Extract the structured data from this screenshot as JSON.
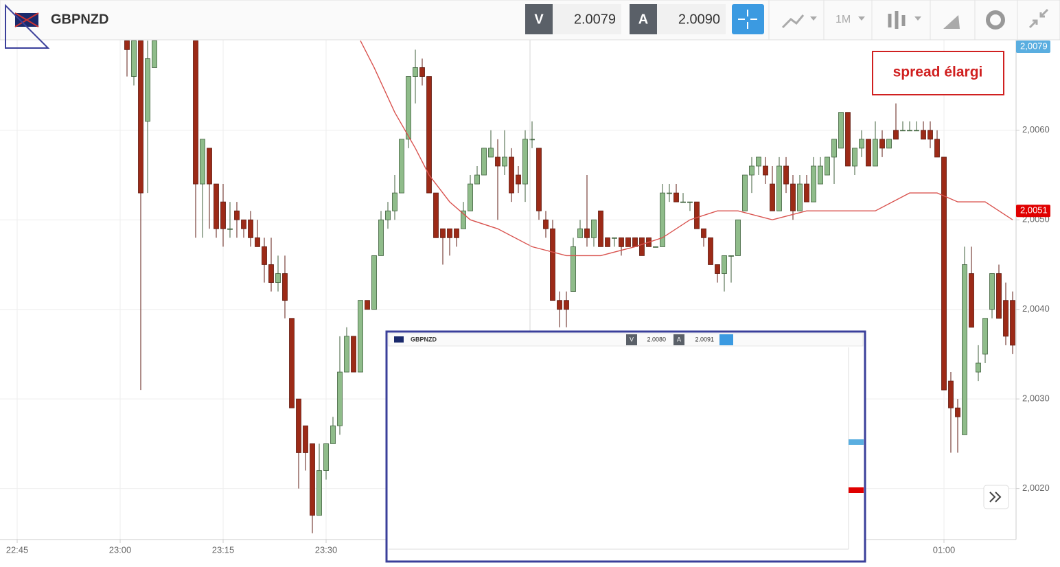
{
  "header": {
    "symbol": "GBPNZD",
    "bid_label": "V",
    "bid": "2.0079",
    "ask_label": "A",
    "ask": "2.0090",
    "timeframe": "1M"
  },
  "annotation": "spread élargi",
  "inset": {
    "symbol": "GBPNZD",
    "bid_label": "V",
    "bid": "2.0080",
    "ask_label": "A",
    "ask": "2.0091"
  },
  "chart_data": {
    "type": "candlestick",
    "up_color": "#8fbc8a",
    "down_color": "#9c2a17",
    "grid": true,
    "ylim": [
      2.00143,
      2.00701
    ],
    "yticks": [
      {
        "value": 2.002,
        "label": "2,0020"
      },
      {
        "value": 2.003,
        "label": "2,0030"
      },
      {
        "value": 2.004,
        "label": "2,0040"
      },
      {
        "value": 2.005,
        "label": "2,0050"
      },
      {
        "value": 2.006,
        "label": "2,0060"
      }
    ],
    "xlim": [
      "22:42:30",
      "01:10:30"
    ],
    "xticks": [
      "22:45",
      "23:00",
      "23:15",
      "23:30",
      "01:00"
    ],
    "x": [
      "23:01",
      "23:02",
      "23:03",
      "23:04",
      "23:05",
      "23:11",
      "23:12",
      "23:13",
      "23:14",
      "23:15",
      "23:16",
      "23:17",
      "23:18",
      "23:19",
      "23:20",
      "23:21",
      "23:22",
      "23:23",
      "23:24",
      "23:25",
      "23:26",
      "23:27",
      "23:28",
      "23:29",
      "23:30",
      "23:31",
      "23:32",
      "23:33",
      "23:34",
      "23:35",
      "23:36",
      "23:37",
      "23:38",
      "23:39",
      "23:40",
      "23:41",
      "23:42",
      "23:43",
      "23:44",
      "23:45",
      "23:46",
      "23:47",
      "23:48",
      "23:49",
      "23:50",
      "23:51",
      "23:52",
      "23:53",
      "23:54",
      "23:55",
      "23:56",
      "23:57",
      "23:58",
      "23:59",
      "00:00",
      "00:01",
      "00:02",
      "00:03",
      "00:04",
      "00:05",
      "00:06",
      "00:07",
      "00:08",
      "00:09",
      "00:10",
      "00:11",
      "00:12",
      "00:13",
      "00:14",
      "00:15",
      "00:16",
      "00:17",
      "00:18",
      "00:19",
      "00:20",
      "00:21",
      "00:22",
      "00:23",
      "00:24",
      "00:25",
      "00:26",
      "00:27",
      "00:28",
      "00:29",
      "00:30",
      "00:31",
      "00:32",
      "00:33",
      "00:34",
      "00:35",
      "00:36",
      "00:37",
      "00:38",
      "00:39",
      "00:40",
      "00:41",
      "00:42",
      "00:43",
      "00:44",
      "00:45",
      "00:46",
      "00:47",
      "00:48",
      "00:49",
      "00:50",
      "00:51",
      "00:52",
      "00:53",
      "00:54",
      "00:55",
      "00:56",
      "00:57",
      "00:58",
      "00:59",
      "01:00",
      "01:01",
      "01:02",
      "01:03",
      "01:04",
      "01:05",
      "01:06",
      "01:07",
      "01:08",
      "01:09",
      "01:10"
    ],
    "open": [
      2.007,
      2.0066,
      2.007,
      2.0061,
      2.0067,
      2.007,
      2.0054,
      2.0058,
      2.0054,
      2.0052,
      2.0049,
      2.0051,
      2.005,
      2.005,
      2.0048,
      2.0047,
      2.0045,
      2.0043,
      2.0044,
      2.0039,
      2.003,
      2.0027,
      2.0025,
      2.0017,
      2.0022,
      2.0025,
      2.0027,
      2.0033,
      2.0037,
      2.0033,
      2.0041,
      2.004,
      2.0046,
      2.005,
      2.0051,
      2.0053,
      2.0059,
      2.0066,
      2.0067,
      2.0066,
      2.0053,
      2.0049,
      2.0049,
      2.0049,
      2.0049,
      2.0051,
      2.0054,
      2.0055,
      2.0057,
      2.0057,
      2.0056,
      2.0057,
      2.0055,
      2.0054,
      2.0059,
      2.0058,
      2.005,
      2.0049,
      2.0041,
      2.0041,
      2.0042,
      2.0048,
      2.0049,
      2.0048,
      2.0051,
      2.0048,
      2.0048,
      2.0048,
      2.0048,
      2.0048,
      2.0048,
      2.0048,
      2.0047,
      2.0047,
      2.0053,
      2.0053,
      2.0052,
      2.0052,
      2.0052,
      2.0049,
      2.0048,
      2.0045,
      2.0044,
      2.0046,
      2.0046,
      2.0051,
      2.0055,
      2.0056,
      2.0056,
      2.0054,
      2.0051,
      2.0056,
      2.0054,
      2.0051,
      2.0054,
      2.0052,
      2.0054,
      2.0055,
      2.0057,
      2.0058,
      2.0062,
      2.0056,
      2.0058,
      2.0059,
      2.0056,
      2.0059,
      2.0058,
      2.006,
      2.006,
      2.006,
      2.006,
      2.006,
      2.006,
      2.0059,
      2.0057,
      2.0032,
      2.0029,
      2.0026,
      2.0044,
      2.0033,
      2.0035,
      2.004,
      2.0044,
      2.0041,
      2.0041
    ],
    "high": [
      2.007,
      2.007,
      2.007,
      2.007,
      2.007,
      2.007,
      2.0059,
      2.0058,
      2.0054,
      2.0054,
      2.0052,
      2.0052,
      2.005,
      2.0051,
      2.005,
      2.0048,
      2.0048,
      2.0046,
      2.0046,
      2.0039,
      2.003,
      2.0027,
      2.0025,
      2.0025,
      2.0025,
      2.0028,
      2.0037,
      2.0038,
      2.0037,
      2.0041,
      2.0041,
      2.0046,
      2.0051,
      2.0052,
      2.0055,
      2.0059,
      2.0066,
      2.0069,
      2.0068,
      2.0066,
      2.0053,
      2.0049,
      2.0049,
      2.0049,
      2.0052,
      2.0055,
      2.0056,
      2.0058,
      2.006,
      2.0059,
      2.006,
      2.0058,
      2.0056,
      2.006,
      2.0061,
      2.0058,
      2.0051,
      2.005,
      2.0042,
      2.0042,
      2.0048,
      2.005,
      2.0055,
      2.005,
      2.0051,
      2.0048,
      2.0048,
      2.0048,
      2.0048,
      2.0048,
      2.0048,
      2.0048,
      2.0047,
      2.0054,
      2.0054,
      2.0054,
      2.0053,
      2.0052,
      2.0052,
      2.0049,
      2.0048,
      2.0045,
      2.0046,
      2.0046,
      2.005,
      2.0055,
      2.0057,
      2.0057,
      2.0057,
      2.0056,
      2.0057,
      2.0057,
      2.0055,
      2.0055,
      2.0055,
      2.0057,
      2.0057,
      2.0057,
      2.0059,
      2.0062,
      2.0062,
      2.0058,
      2.006,
      2.0059,
      2.0061,
      2.006,
      2.0059,
      2.0063,
      2.0061,
      2.0061,
      2.0061,
      2.0061,
      2.0061,
      2.006,
      2.0057,
      2.0033,
      2.003,
      2.0047,
      2.0047,
      2.0036,
      2.0039,
      2.0044,
      2.0045,
      2.0043,
      2.0042
    ],
    "low": [
      2.0066,
      2.0065,
      2.0031,
      2.0053,
      2.0067,
      2.0048,
      2.0048,
      2.0049,
      2.0048,
      2.0047,
      2.0048,
      2.0048,
      2.0048,
      2.0047,
      2.0047,
      2.0043,
      2.0042,
      2.0042,
      2.0039,
      2.0029,
      2.002,
      2.0022,
      2.0015,
      2.0017,
      2.0021,
      2.0025,
      2.0026,
      2.0033,
      2.0033,
      2.0033,
      2.004,
      2.004,
      2.0046,
      2.0049,
      2.005,
      2.0053,
      2.0058,
      2.0063,
      2.0065,
      2.0053,
      2.0048,
      2.0045,
      2.0046,
      2.0047,
      2.0049,
      2.0051,
      2.0054,
      2.0055,
      2.0057,
      2.005,
      2.0055,
      2.0052,
      2.0053,
      2.0052,
      2.0058,
      2.005,
      2.0048,
      2.0041,
      2.0038,
      2.0038,
      2.0042,
      2.0048,
      2.0047,
      2.0047,
      2.0047,
      2.0047,
      2.0047,
      2.0046,
      2.0047,
      2.0047,
      2.0046,
      2.0047,
      2.0047,
      2.0047,
      2.0052,
      2.0052,
      2.0052,
      2.0051,
      2.0049,
      2.0047,
      2.0045,
      2.0043,
      2.0042,
      2.0043,
      2.0046,
      2.0051,
      2.0053,
      2.0055,
      2.0054,
      2.0051,
      2.0051,
      2.0053,
      2.005,
      2.0051,
      2.0052,
      2.0052,
      2.0054,
      2.0055,
      2.0054,
      2.0058,
      2.0056,
      2.0055,
      2.0057,
      2.0056,
      2.0056,
      2.0057,
      2.0058,
      2.0059,
      2.006,
      2.006,
      2.006,
      2.0059,
      2.0058,
      2.0057,
      2.0031,
      2.0024,
      2.0024,
      2.0026,
      2.0038,
      2.0032,
      2.0034,
      2.0039,
      2.0039,
      2.0036,
      2.0035
    ],
    "close": [
      2.0069,
      2.007,
      2.0053,
      2.0068,
      2.007,
      2.0054,
      2.0059,
      2.0054,
      2.0049,
      2.0049,
      2.0049,
      2.005,
      2.0049,
      2.0048,
      2.0047,
      2.0045,
      2.0043,
      2.0044,
      2.0041,
      2.0029,
      2.0024,
      2.0024,
      2.0017,
      2.0022,
      2.0025,
      2.0027,
      2.0033,
      2.0037,
      2.0033,
      2.0041,
      2.004,
      2.0046,
      2.005,
      2.0051,
      2.0053,
      2.0059,
      2.0066,
      2.0067,
      2.0066,
      2.0053,
      2.0048,
      2.0048,
      2.0048,
      2.0048,
      2.0051,
      2.0054,
      2.0055,
      2.0058,
      2.0058,
      2.0056,
      2.0057,
      2.0053,
      2.0054,
      2.0059,
      2.0059,
      2.0051,
      2.0049,
      2.0041,
      2.004,
      2.004,
      2.0047,
      2.0049,
      2.0048,
      2.005,
      2.0047,
      2.0047,
      2.0048,
      2.0047,
      2.0047,
      2.0047,
      2.0046,
      2.0047,
      2.0047,
      2.0053,
      2.0053,
      2.0052,
      2.0052,
      2.0052,
      2.0049,
      2.0048,
      2.0045,
      2.0044,
      2.0046,
      2.0046,
      2.005,
      2.0055,
      2.0056,
      2.0057,
      2.0055,
      2.0051,
      2.0056,
      2.0054,
      2.0051,
      2.0054,
      2.0052,
      2.0056,
      2.0056,
      2.0057,
      2.0059,
      2.0062,
      2.0056,
      2.0058,
      2.0059,
      2.0056,
      2.0059,
      2.0058,
      2.0059,
      2.0059,
      2.006,
      2.006,
      2.006,
      2.0059,
      2.0059,
      2.0057,
      2.0031,
      2.0029,
      2.0028,
      2.0045,
      2.0038,
      2.0034,
      2.0039,
      2.0044,
      2.0039,
      2.0037,
      2.0036
    ],
    "ma": {
      "color": "#d9534f",
      "x": [
        "23:35",
        "23:37",
        "23:40",
        "23:43",
        "23:45",
        "23:48",
        "23:51",
        "23:55",
        "00:00",
        "00:05",
        "00:10",
        "00:15",
        "00:19",
        "00:23",
        "00:27",
        "00:30",
        "00:35",
        "00:40",
        "00:45",
        "00:50",
        "00:55",
        "00:59",
        "01:02",
        "01:06",
        "01:10"
      ],
      "values": [
        2.007,
        2.0067,
        2.0062,
        2.0058,
        2.0055,
        2.0052,
        2.005,
        2.0049,
        2.0047,
        2.0046,
        2.0046,
        2.0047,
        2.0048,
        2.005,
        2.0051,
        2.0051,
        2.005,
        2.0051,
        2.0051,
        2.0051,
        2.0053,
        2.0053,
        2.0052,
        2.0052,
        2.005
      ]
    },
    "price_markers": [
      {
        "value": 2.0079,
        "label": "2,0079",
        "color": "#5aaee0"
      },
      {
        "value": 2.0051,
        "label": "2,0051",
        "color": "#e00000"
      }
    ]
  }
}
